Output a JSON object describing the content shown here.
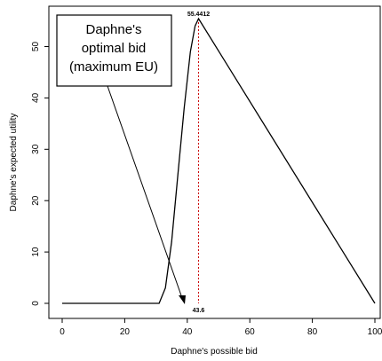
{
  "chart_data": {
    "type": "line",
    "xlabel": "Daphne's possible bid",
    "ylabel": "Daphne's expected utility",
    "xlim": [
      0,
      100
    ],
    "ylim": [
      0,
      55.4412
    ],
    "x_ticks": [
      0,
      20,
      40,
      60,
      80,
      100
    ],
    "y_ticks": [
      0,
      10,
      20,
      30,
      40,
      50
    ],
    "grid": false,
    "series": [
      {
        "x": [
          0,
          31,
          33,
          35,
          37,
          39,
          41,
          42.5,
          43.6,
          100
        ],
        "y": [
          0,
          0,
          3,
          12,
          25,
          38,
          49,
          54,
          55.4412,
          0
        ]
      }
    ],
    "annotations": {
      "peak_value_label": "55.4412",
      "optimal_bid_label": "43.6",
      "optimal_bid": 43.6,
      "peak_value": 55.4412,
      "callout_lines": [
        "Daphne's",
        "optimal bid",
        "(maximum EU)"
      ]
    },
    "colors": {
      "line": "#000000",
      "marker_line": "#cc0000"
    }
  }
}
